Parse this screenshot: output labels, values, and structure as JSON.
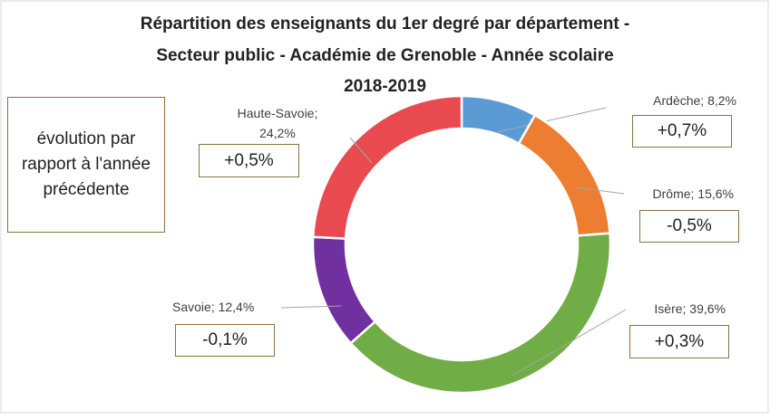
{
  "chart_data": {
    "type": "donut",
    "title": [
      "Répartition des enseignants du 1er degré par département -",
      "Secteur public - Académie de Grenoble - Année scolaire",
      "2018-2019"
    ],
    "categories": [
      "Ardèche",
      "Drôme",
      "Isère",
      "Savoie",
      "Haute-Savoie"
    ],
    "values": [
      8.2,
      15.6,
      39.6,
      12.4,
      24.2
    ],
    "value_labels": [
      "Ardèche; 8,2%",
      "Drôme; 15,6%",
      "Isère; 39,6%",
      "Savoie; 12,4%",
      "Haute-Savoie; 24,2%"
    ],
    "colors": [
      "#5b9bd5",
      "#ed7d31",
      "#70ad47",
      "#7030a0",
      "#e84a50"
    ],
    "annotations": [
      "+0,7%",
      "-0,5%",
      "+0,3%",
      "-0,1%",
      "+0,5%"
    ],
    "note": "évolution par rapport à l'année précédente"
  }
}
